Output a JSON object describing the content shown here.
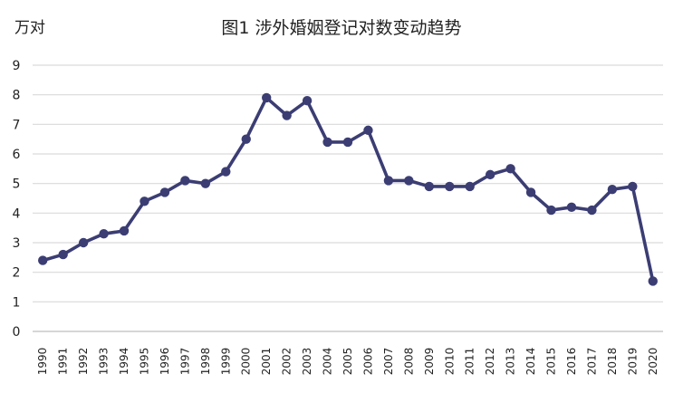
{
  "chart_data": {
    "type": "line",
    "title": "图1 涉外婚姻登记对数变动趋势",
    "ylabel": "万对",
    "xlabel": "",
    "ylim": [
      0,
      9
    ],
    "yticks": [
      0,
      1,
      2,
      3,
      4,
      5,
      6,
      7,
      8,
      9
    ],
    "grid": true,
    "legend": "none",
    "x": [
      "1990",
      "1991",
      "1992",
      "1993",
      "1994",
      "1995",
      "1996",
      "1997",
      "1998",
      "1999",
      "2000",
      "2001",
      "2002",
      "2003",
      "2004",
      "2005",
      "2006",
      "2007",
      "2008",
      "2009",
      "2010",
      "2011",
      "2012",
      "2013",
      "2014",
      "2015",
      "2016",
      "2017",
      "2018",
      "2019",
      "2020"
    ],
    "series": [
      {
        "values": [
          2.4,
          2.6,
          3.0,
          3.3,
          3.4,
          4.4,
          4.7,
          5.1,
          5.0,
          5.4,
          6.5,
          7.9,
          7.3,
          7.8,
          6.4,
          6.4,
          6.8,
          5.1,
          5.1,
          4.9,
          4.9,
          4.9,
          5.3,
          5.5,
          4.7,
          4.1,
          4.2,
          4.1,
          4.8,
          4.9,
          1.7
        ],
        "color": "#3b3d73"
      }
    ]
  }
}
